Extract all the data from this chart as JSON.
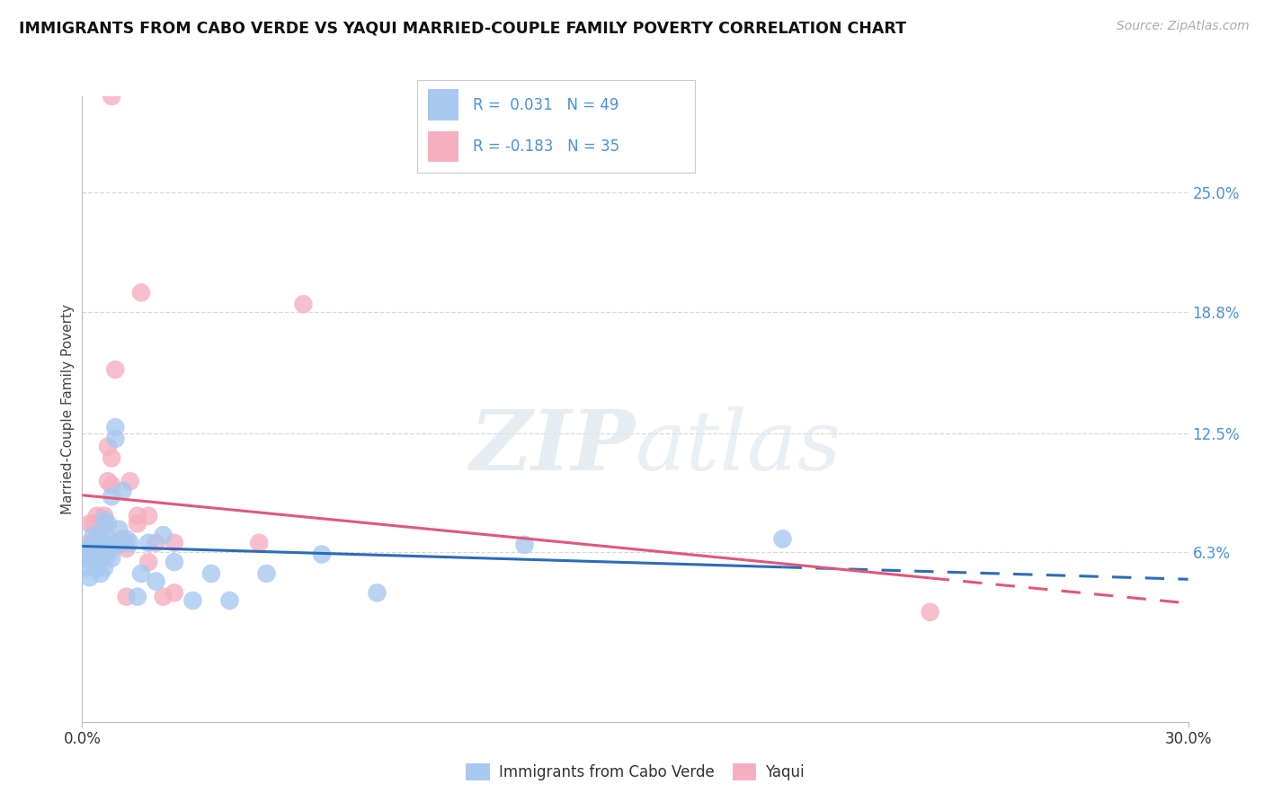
{
  "title": "IMMIGRANTS FROM CABO VERDE VS YAQUI MARRIED-COUPLE FAMILY POVERTY CORRELATION CHART",
  "source": "Source: ZipAtlas.com",
  "ylabel": "Married-Couple Family Poverty",
  "blue_label": "Immigrants from Cabo Verde",
  "pink_label": "Yaqui",
  "legend_text_color": "#4a90d9",
  "blue_scatter_color": "#a8c8f0",
  "pink_scatter_color": "#f5b0c0",
  "blue_line_color": "#2b6cb8",
  "pink_line_color": "#e05878",
  "right_tick_color": "#4a90d9",
  "grid_color": "#d8d8d8",
  "xlim": [
    0.0,
    0.3
  ],
  "ylim": [
    -0.025,
    0.3
  ],
  "xticks": [
    0.0,
    0.3
  ],
  "xticklabels": [
    "0.0%",
    "30.0%"
  ],
  "ytick_vals": [
    0.063,
    0.125,
    0.188,
    0.25
  ],
  "ytick_labels": [
    "6.3%",
    "12.5%",
    "18.8%",
    "25.0%"
  ],
  "watermark_zip": "ZIP",
  "watermark_atlas": "atlas",
  "blue_x": [
    0.001,
    0.001,
    0.001,
    0.002,
    0.002,
    0.002,
    0.003,
    0.003,
    0.003,
    0.003,
    0.004,
    0.004,
    0.004,
    0.004,
    0.005,
    0.005,
    0.005,
    0.005,
    0.006,
    0.006,
    0.006,
    0.006,
    0.007,
    0.007,
    0.007,
    0.008,
    0.008,
    0.008,
    0.009,
    0.009,
    0.01,
    0.01,
    0.011,
    0.012,
    0.013,
    0.015,
    0.016,
    0.018,
    0.02,
    0.022,
    0.025,
    0.03,
    0.035,
    0.04,
    0.05,
    0.065,
    0.08,
    0.12,
    0.19
  ],
  "blue_y": [
    0.055,
    0.06,
    0.065,
    0.05,
    0.06,
    0.065,
    0.058,
    0.063,
    0.068,
    0.072,
    0.055,
    0.062,
    0.065,
    0.07,
    0.052,
    0.06,
    0.064,
    0.072,
    0.055,
    0.062,
    0.067,
    0.08,
    0.062,
    0.07,
    0.078,
    0.06,
    0.067,
    0.092,
    0.122,
    0.128,
    0.067,
    0.075,
    0.095,
    0.07,
    0.068,
    0.04,
    0.052,
    0.068,
    0.048,
    0.072,
    0.058,
    0.038,
    0.052,
    0.038,
    0.052,
    0.062,
    0.042,
    0.067,
    0.07
  ],
  "pink_x": [
    0.001,
    0.002,
    0.002,
    0.003,
    0.003,
    0.004,
    0.004,
    0.005,
    0.005,
    0.006,
    0.006,
    0.007,
    0.007,
    0.008,
    0.008,
    0.009,
    0.01,
    0.011,
    0.012,
    0.012,
    0.013,
    0.015,
    0.015,
    0.016,
    0.018,
    0.018,
    0.02,
    0.022,
    0.025,
    0.025,
    0.048,
    0.06,
    0.23,
    0.01,
    0.008
  ],
  "pink_y": [
    0.065,
    0.068,
    0.078,
    0.065,
    0.078,
    0.07,
    0.082,
    0.072,
    0.078,
    0.078,
    0.082,
    0.1,
    0.118,
    0.098,
    0.112,
    0.158,
    0.068,
    0.07,
    0.04,
    0.065,
    0.1,
    0.078,
    0.082,
    0.198,
    0.058,
    0.082,
    0.068,
    0.04,
    0.042,
    0.068,
    0.068,
    0.192,
    0.032,
    0.068,
    0.3
  ]
}
